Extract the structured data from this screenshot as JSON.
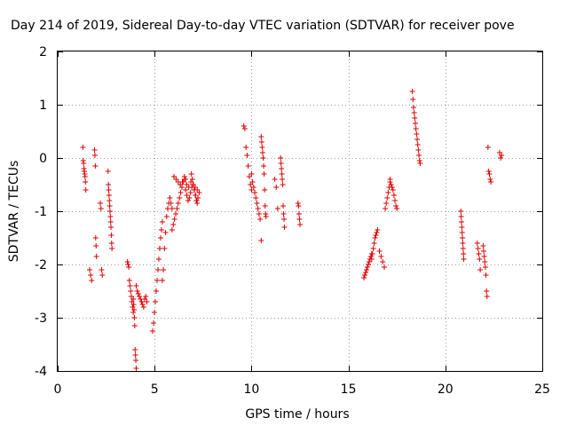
{
  "chart_data": {
    "type": "scatter",
    "title": "Day 214 of 2019, Sidereal Day-to-day VTEC variation (SDTVAR) for receiver pove",
    "xlabel": "GPS time / hours",
    "ylabel": "SDTVAR / TECUs",
    "xlim": [
      0,
      25
    ],
    "ylim": [
      -4,
      2
    ],
    "xticks": [
      0,
      5,
      10,
      15,
      20,
      25
    ],
    "yticks": [
      -4,
      -3,
      -2,
      -1,
      0,
      1,
      2
    ],
    "xtick_labels": [
      "0",
      "5",
      "10",
      "15",
      "20",
      "25"
    ],
    "ytick_labels": [
      "-4",
      "-3",
      "-2",
      "-1",
      "0",
      "1",
      "2"
    ],
    "grid": true,
    "marker": "+",
    "color": "#e00000",
    "series": [
      {
        "name": "SDTVAR",
        "segments": [
          {
            "x0": 1.3,
            "x1": 1.45,
            "y": [
              0.2,
              -0.05,
              -0.1,
              -0.2,
              -0.25,
              -0.3,
              -0.35,
              -0.45,
              -0.6
            ]
          },
          {
            "x0": 1.65,
            "x1": 1.75,
            "y": [
              -2.1,
              -2.2,
              -2.3
            ]
          },
          {
            "x0": 1.9,
            "x1": 2.0,
            "y": [
              0.15,
              0.05,
              -0.15,
              -1.5,
              -1.65,
              -1.85
            ]
          },
          {
            "x0": 2.2,
            "x1": 2.3,
            "y": [
              -0.85,
              -0.95,
              -2.1,
              -2.2
            ]
          },
          {
            "x0": 2.6,
            "x1": 2.8,
            "y": [
              -0.25,
              -0.5,
              -0.6,
              -0.7,
              -0.8,
              -0.9,
              -1.0,
              -1.1,
              -1.2,
              -1.3,
              -1.45,
              -1.6,
              -1.7
            ]
          },
          {
            "x0": 3.6,
            "x1": 3.9,
            "y": [
              -1.95,
              -2.0,
              -2.05,
              -2.3,
              -2.4,
              -2.5,
              -2.6,
              -2.7,
              -2.8,
              -2.9
            ]
          },
          {
            "x0": 3.9,
            "x1": 4.05,
            "y": [
              -2.65,
              -2.75,
              -2.85,
              -3.0,
              -3.15,
              -3.6,
              -3.7,
              -3.8,
              -3.95
            ]
          },
          {
            "x0": 4.05,
            "x1": 4.6,
            "y": [
              -2.4,
              -2.5,
              -2.55,
              -2.6,
              -2.65,
              -2.7,
              -2.75,
              -2.8,
              -2.65,
              -2.6,
              -2.7
            ]
          },
          {
            "x0": 4.9,
            "x1": 5.4,
            "y": [
              -3.25,
              -3.1,
              -2.9,
              -2.7,
              -2.5,
              -2.3,
              -2.1,
              -1.9,
              -1.7,
              -1.5,
              -1.35,
              -1.2
            ]
          },
          {
            "x0": 5.4,
            "x1": 5.9,
            "y": [
              -2.3,
              -2.1,
              -1.7,
              -1.4,
              -1.1,
              -0.95,
              -0.85,
              -0.75,
              -0.85,
              -0.95
            ]
          },
          {
            "x0": 5.9,
            "x1": 6.6,
            "y": [
              -1.35,
              -1.25,
              -1.15,
              -1.05,
              -0.95,
              -0.85,
              -0.75,
              -0.65,
              -0.55,
              -0.45,
              -0.35,
              -0.4
            ]
          },
          {
            "x0": 6.0,
            "x1": 7.2,
            "y": [
              -0.35,
              -0.4,
              -0.45,
              -0.5,
              -0.45,
              -0.4,
              -0.5,
              -0.55,
              -0.45,
              -0.5,
              -0.55,
              -0.6
            ]
          },
          {
            "x0": 6.6,
            "x1": 7.3,
            "y": [
              -0.6,
              -0.7,
              -0.8,
              -0.75,
              -0.65,
              -0.55,
              -0.5,
              -0.6,
              -0.7,
              -0.8,
              -0.75,
              -0.65
            ]
          },
          {
            "x0": 6.9,
            "x1": 7.2,
            "y": [
              -0.3,
              -0.4,
              -0.5,
              -0.6,
              -0.7,
              -0.8,
              -0.85
            ]
          },
          {
            "x0": 9.6,
            "x1": 10.0,
            "y": [
              0.6,
              0.55,
              0.2,
              0.05,
              -0.15,
              -0.35,
              -0.5,
              -0.6
            ]
          },
          {
            "x0": 10.0,
            "x1": 10.5,
            "y": [
              -0.3,
              -0.45,
              -0.55,
              -0.65,
              -0.75,
              -0.85,
              -0.95,
              -1.05,
              -1.15,
              -1.55
            ]
          },
          {
            "x0": 10.5,
            "x1": 10.75,
            "y": [
              0.4,
              0.3,
              0.2,
              0.1,
              0.0,
              -0.15,
              -0.3,
              -0.6,
              -0.9,
              -1.05,
              -1.1
            ]
          },
          {
            "x0": 11.2,
            "x1": 11.35,
            "y": [
              -0.4,
              -0.55,
              -0.95
            ]
          },
          {
            "x0": 11.5,
            "x1": 11.7,
            "y": [
              0.0,
              -0.1,
              -0.2,
              -0.3,
              -0.4,
              -0.5,
              -0.9,
              -1.05,
              -1.15,
              -1.3
            ]
          },
          {
            "x0": 12.4,
            "x1": 12.5,
            "y": [
              -0.85,
              -0.9,
              -1.05,
              -1.15,
              -1.25
            ]
          },
          {
            "x0": 15.8,
            "x1": 16.2,
            "y": [
              -2.25,
              -2.2,
              -2.15,
              -2.1,
              -2.05,
              -2.0,
              -1.95,
              -1.9,
              -1.85,
              -1.8
            ]
          },
          {
            "x0": 16.2,
            "x1": 16.5,
            "y": [
              -1.9,
              -1.8,
              -1.7,
              -1.6,
              -1.5,
              -1.45,
              -1.4,
              -1.35
            ]
          },
          {
            "x0": 16.6,
            "x1": 16.85,
            "y": [
              -1.75,
              -1.85,
              -1.95,
              -2.05
            ]
          },
          {
            "x0": 16.9,
            "x1": 17.15,
            "y": [
              -0.95,
              -0.85,
              -0.75,
              -0.65,
              -0.55,
              -0.45
            ]
          },
          {
            "x0": 17.15,
            "x1": 17.5,
            "y": [
              -0.4,
              -0.5,
              -0.55,
              -0.6,
              -0.7,
              -0.8,
              -0.9,
              -0.95
            ]
          },
          {
            "x0": 18.3,
            "x1": 18.7,
            "y": [
              1.25,
              1.1,
              0.95,
              0.85,
              0.75,
              0.65,
              0.55,
              0.45,
              0.35,
              0.25,
              0.15,
              0.05,
              -0.05,
              -0.1
            ]
          },
          {
            "x0": 20.8,
            "x1": 20.95,
            "y": [
              -1.0,
              -1.1,
              -1.2,
              -1.3,
              -1.4,
              -1.5,
              -1.6,
              -1.7,
              -1.8,
              -1.9
            ]
          },
          {
            "x0": 21.65,
            "x1": 21.8,
            "y": [
              -1.6,
              -1.7,
              -1.8,
              -1.9,
              -2.1
            ]
          },
          {
            "x0": 21.95,
            "x1": 22.15,
            "y": [
              -1.65,
              -1.75,
              -1.85,
              -1.95,
              -2.05,
              -2.2,
              -2.5,
              -2.6
            ]
          },
          {
            "x0": 22.2,
            "x1": 22.35,
            "y": [
              0.2,
              -0.25,
              -0.3,
              -0.4,
              -0.45
            ]
          },
          {
            "x0": 22.8,
            "x1": 22.9,
            "y": [
              0.1,
              0.0,
              0.05
            ]
          }
        ]
      }
    ]
  }
}
